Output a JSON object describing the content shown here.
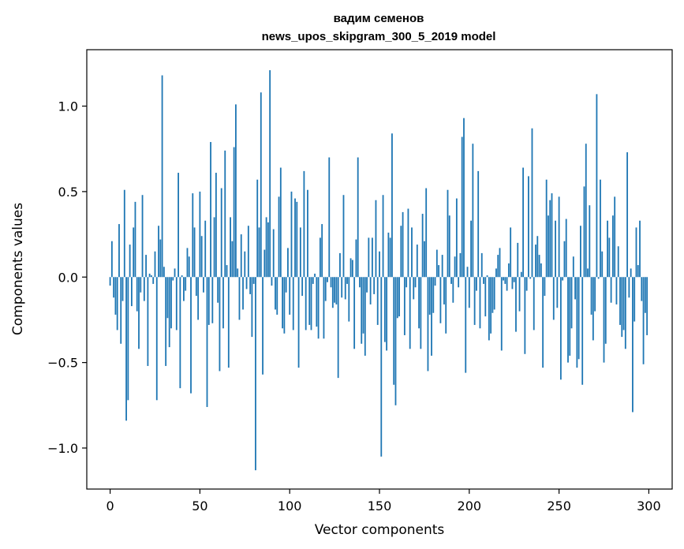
{
  "chart_data": {
    "type": "bar",
    "title": "вадим семенов",
    "subtitle": "news_upos_skipgram_300_5_2019 model",
    "xlabel": "Vector components",
    "ylabel": "Components values",
    "xlim": [
      -13,
      313
    ],
    "ylim": [
      -1.24,
      1.33
    ],
    "xticks": [
      0,
      50,
      100,
      150,
      200,
      250,
      300
    ],
    "xtick_labels": [
      "0",
      "50",
      "100",
      "150",
      "200",
      "250",
      "300"
    ],
    "yticks": [
      -1.0,
      -0.5,
      0.0,
      0.5,
      1.0
    ],
    "ytick_labels": [
      "−1.0",
      "−0.5",
      "0.0",
      "0.5",
      "1.0"
    ],
    "bar_color": "#1f77b4",
    "grid": false,
    "x": "0..299 (one bar per vector component)",
    "values": [
      -0.05,
      0.21,
      -0.12,
      -0.22,
      -0.31,
      0.31,
      -0.39,
      -0.14,
      0.51,
      -0.84,
      -0.72,
      0.19,
      -0.17,
      0.29,
      0.44,
      -0.2,
      -0.42,
      -0.09,
      0.48,
      -0.14,
      0.13,
      -0.52,
      0.02,
      0.01,
      -0.04,
      0.15,
      -0.72,
      0.3,
      0.22,
      1.18,
      0.06,
      -0.52,
      -0.24,
      -0.41,
      -0.3,
      -0.02,
      0.05,
      -0.31,
      0.61,
      -0.65,
      0.01,
      -0.14,
      -0.08,
      0.17,
      0.12,
      -0.68,
      0.49,
      0.29,
      -0.11,
      -0.25,
      0.5,
      0.24,
      -0.09,
      0.33,
      -0.76,
      -0.28,
      0.79,
      -0.27,
      0.35,
      0.61,
      -0.15,
      -0.55,
      0.52,
      -0.3,
      0.74,
      0.07,
      -0.53,
      0.35,
      0.21,
      0.76,
      1.01,
      0.05,
      -0.25,
      0.25,
      -0.19,
      0.15,
      -0.07,
      0.3,
      -0.1,
      -0.35,
      -0.04,
      -1.13,
      0.57,
      0.29,
      1.08,
      -0.57,
      0.16,
      0.35,
      0.32,
      1.21,
      -0.05,
      0.28,
      -0.19,
      -0.22,
      0.47,
      0.64,
      -0.3,
      -0.33,
      -0.09,
      0.17,
      -0.22,
      0.5,
      -0.31,
      0.46,
      0.44,
      -0.53,
      0.29,
      -0.11,
      0.62,
      -0.31,
      0.51,
      -0.28,
      -0.31,
      -0.04,
      0.02,
      -0.29,
      -0.36,
      0.23,
      0.31,
      -0.36,
      -0.14,
      -0.03,
      0.7,
      -0.06,
      -0.18,
      -0.15,
      -0.16,
      -0.59,
      0.14,
      -0.12,
      0.48,
      -0.13,
      -0.04,
      -0.26,
      0.11,
      0.1,
      -0.42,
      0.22,
      0.7,
      -0.06,
      -0.39,
      -0.33,
      -0.46,
      -0.09,
      0.23,
      -0.16,
      0.23,
      -0.1,
      0.45,
      -0.28,
      0.15,
      -1.05,
      0.48,
      -0.38,
      -0.43,
      0.26,
      0.23,
      0.84,
      -0.63,
      -0.75,
      -0.24,
      -0.23,
      0.3,
      0.38,
      -0.34,
      -0.06,
      0.4,
      -0.42,
      0.29,
      -0.13,
      -0.06,
      0.19,
      -0.3,
      -0.42,
      0.37,
      0.21,
      0.52,
      -0.55,
      -0.22,
      -0.46,
      -0.21,
      -0.05,
      0.16,
      0.07,
      -0.27,
      0.13,
      -0.16,
      -0.33,
      0.51,
      0.36,
      -0.04,
      -0.15,
      0.12,
      0.46,
      -0.06,
      0.14,
      0.82,
      0.93,
      -0.56,
      0.06,
      -0.18,
      0.33,
      0.78,
      -0.28,
      -0.08,
      0.62,
      -0.3,
      0.14,
      -0.04,
      -0.23,
      0.01,
      -0.37,
      -0.33,
      -0.21,
      -0.19,
      0.05,
      0.13,
      0.17,
      -0.43,
      -0.02,
      -0.04,
      -0.08,
      0.08,
      0.29,
      -0.07,
      -0.03,
      -0.32,
      0.2,
      -0.2,
      0.03,
      0.64,
      -0.45,
      -0.08,
      0.59,
      -0.01,
      0.87,
      -0.31,
      0.19,
      0.24,
      0.13,
      0.08,
      -0.53,
      -0.11,
      0.57,
      0.36,
      0.45,
      0.49,
      -0.25,
      0.33,
      -0.18,
      0.47,
      -0.6,
      -0.02,
      0.21,
      0.34,
      -0.5,
      -0.46,
      -0.3,
      0.12,
      -0.13,
      -0.53,
      -0.48,
      0.3,
      -0.63,
      0.53,
      0.78,
      0.05,
      0.42,
      -0.22,
      -0.37,
      -0.2,
      1.07,
      -0.01,
      0.57,
      0.15,
      -0.5,
      -0.39,
      0.33,
      0.23,
      -0.15,
      0.36,
      0.47,
      -0.16,
      0.18,
      -0.28,
      -0.35,
      -0.31,
      -0.42,
      0.73,
      -0.12,
      0.05,
      -0.79,
      -0.26,
      0.29,
      0.07,
      0.33,
      -0.14,
      -0.51,
      -0.21,
      -0.34
    ]
  }
}
